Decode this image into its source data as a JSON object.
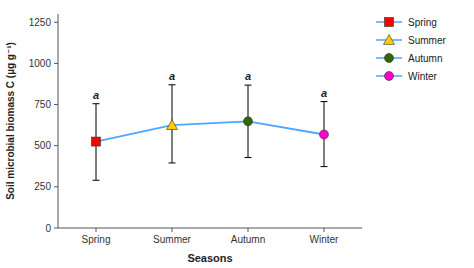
{
  "chart_data": {
    "type": "line",
    "categories": [
      "Spring",
      "Summer",
      "Autumn",
      "Winter"
    ],
    "values": [
      525,
      625,
      648,
      568
    ],
    "errors_upper": [
      230,
      245,
      220,
      200
    ],
    "errors_lower": [
      235,
      230,
      220,
      195
    ],
    "color": "#4da6ff",
    "colors": [
      "#ff0000",
      "#ffcc00",
      "#2d6a00",
      "#ff00cc"
    ],
    "markers": [
      "square",
      "triangle",
      "circle",
      "circle"
    ],
    "annotations": [
      "a",
      "a",
      "a",
      "a"
    ],
    "xlabel": "Seasons",
    "ylabel": "Soil microbial biomass C (µg g⁻¹)",
    "ylim": [
      0,
      1300
    ],
    "yticks": [
      0,
      250,
      500,
      750,
      1000,
      1250
    ],
    "grid": false,
    "legend": "right"
  }
}
